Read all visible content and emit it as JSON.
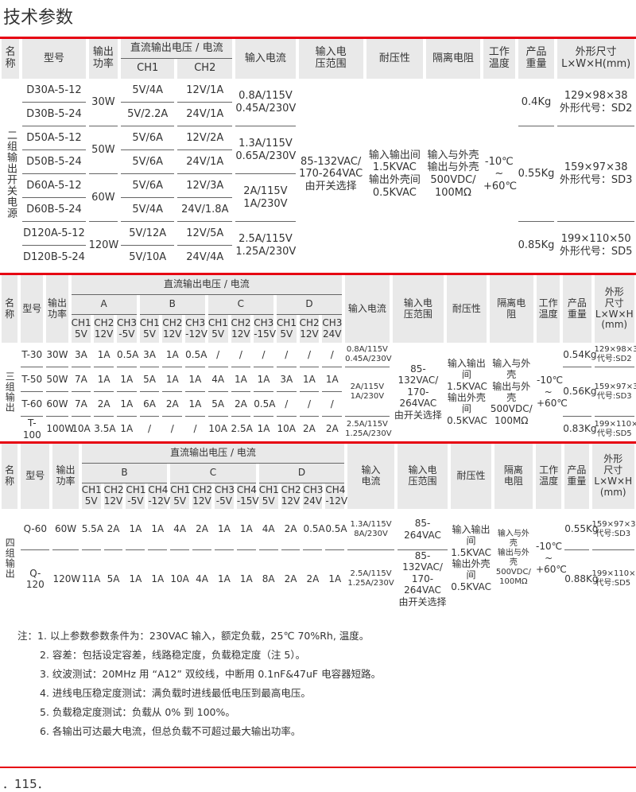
{
  "title": "技术参数",
  "t1": {
    "headers": {
      "name": "名\n称",
      "model": "型号",
      "power": "输出\n功率",
      "dc": "直流输出电压 / 电流",
      "ch": [
        "CH1",
        "CH2"
      ],
      "input_current": "输入电流",
      "input_range": "输入电\n压范围",
      "withstand": "耐压性",
      "isolation": "隔离电阻",
      "temp": "工作\n温度",
      "weight": "产品\n重量",
      "size": "外形尺寸\nL×W×H(mm)"
    },
    "group_label": "二组输出开关电源",
    "rows": [
      {
        "model": "D30A-5-12",
        "ch1": "5V/4A",
        "ch2": "12V/1A"
      },
      {
        "model": "D30B-5-24",
        "ch1": "5V/2.2A",
        "ch2": "24V/1A"
      },
      {
        "model": "D50A-5-12",
        "ch1": "5V/6A",
        "ch2": "12V/2A"
      },
      {
        "model": "D50B-5-24",
        "ch1": "5V/6A",
        "ch2": "24V/1A"
      },
      {
        "model": "D60A-5-12",
        "ch1": "5V/6A",
        "ch2": "12V/3A"
      },
      {
        "model": "D60B-5-24",
        "ch1": "5V/4A",
        "ch2": "24V/1.8A"
      },
      {
        "model": "D120A-5-12",
        "ch1": "5V/12A",
        "ch2": "12V/5A"
      },
      {
        "model": "D120B-5-24",
        "ch1": "5V/10A",
        "ch2": "24V/4A"
      }
    ],
    "powers": [
      "30W",
      "50W",
      "60W",
      "120W"
    ],
    "input_currents": [
      "0.8A/115V\n0.45A/230V",
      "1.3A/115V\n0.65A/230V",
      "2A/115V\n1A/230V",
      "2.5A/115V\n1.25A/230V"
    ],
    "input_range": "85-132VAC/\n170-264VAC\n由开关选择",
    "withstand": "输入输出间\n1.5KVAC\n输出外壳间\n0.5KVAC",
    "isolation": "输入与外壳\n输出与外壳\n500VDC/\n100MΩ",
    "temp": "-10℃\n~\n+60℃",
    "weights": [
      "0.4Kg",
      "0.55Kg",
      "0.85Kg"
    ],
    "sizes": [
      "129×98×38\n外形代号：SD2",
      "159×97×38\n外形代号：SD3",
      "199×110×50\n外形代号：SD5"
    ]
  },
  "t2": {
    "headers": {
      "name": "名\n称",
      "model": "型号",
      "power": "输出\n功率",
      "dc": "直流输出电压 / 电流",
      "groups": [
        "A",
        "B",
        "C",
        "D"
      ],
      "ch": [
        "CH1\n5V",
        "CH2\n12V",
        "CH3\n-5V",
        "CH1\n5V",
        "CH2\n12V",
        "CH3\n-12V",
        "CH1\n5V",
        "CH2\n12V",
        "CH3\n-15V",
        "CH1\n5V",
        "CH2\n12V",
        "CH3\n24V"
      ],
      "input_current": "输入电流",
      "input_range": "输入电\n压范围",
      "withstand": "耐压性",
      "isolation": "隔离电\n阻",
      "temp": "工作\n温度",
      "weight": "产品\n重量",
      "size": "外形\n尺寸\nL×W×H\n(mm)"
    },
    "group_label": "三组输出",
    "rows": [
      {
        "model": "T-30",
        "power": "30W",
        "values": [
          "3A",
          "1A",
          "0.5A",
          "3A",
          "1A",
          "0.5A",
          "/",
          "/",
          "/",
          "/",
          "/",
          "/"
        ]
      },
      {
        "model": "T-50",
        "power": "50W",
        "values": [
          "7A",
          "1A",
          "1A",
          "5A",
          "1A",
          "1A",
          "4A",
          "1A",
          "1A",
          "3A",
          "1A",
          "1A"
        ]
      },
      {
        "model": "T-60",
        "power": "60W",
        "values": [
          "7A",
          "2A",
          "1A",
          "6A",
          "2A",
          "1A",
          "5A",
          "2A",
          "0.5A",
          "/",
          "/",
          "/"
        ]
      },
      {
        "model": "T-100",
        "power": "100W",
        "values": [
          "10A",
          "3.5A",
          "1A",
          "/",
          "/",
          "/",
          "10A",
          "2.5A",
          "1A",
          "10A",
          "2A",
          "2A"
        ]
      }
    ],
    "input_currents": [
      "0.8A/115V\n0.45A/230V",
      "2A/115V\n1A/230V",
      "2.5A/115V\n1.25A/230V"
    ],
    "input_range": "85-132VAC/\n170-264VAC\n由开关选择",
    "withstand": "输入输出间\n1.5KVAC\n输出外壳间\n0.5KVAC",
    "isolation": "输入与外壳\n输出与外壳\n500VDC/\n100MΩ",
    "temp": "-10℃\n~\n+60℃",
    "weights": [
      "0.54Kg",
      "0.56Kg",
      "0.83Kg"
    ],
    "sizes": [
      "129×98×38\n代号:SD2",
      "159×97×38\n代号:SD3",
      "199×110×5\n代号:SD5"
    ]
  },
  "t3": {
    "headers": {
      "name": "名\n称",
      "model": "型号",
      "power": "输出\n功率",
      "dc": "直流输出电压 / 电流",
      "groups": [
        "B",
        "C",
        "D"
      ],
      "ch": [
        "CH1\n5V",
        "CH2\n12V",
        "CH1\n-5V",
        "CH4\n-12V",
        "CH1\n5V",
        "CH2\n12V",
        "CH3\n-5V",
        "CH4\n-15V",
        "CH1\n5V",
        "CH2\n12V",
        "CH3\n24V",
        "CH4\n-12V"
      ],
      "input_current": "输入\n电流",
      "input_range": "输入电\n压范围",
      "withstand": "耐压性",
      "isolation": "隔离\n电阻",
      "temp": "工作\n温度",
      "weight": "产品\n重量",
      "size": "外形\n尺寸\nL×W×H\n(mm)"
    },
    "group_label": "四组输出",
    "rows": [
      {
        "model": "Q-60",
        "power": "60W",
        "values": [
          "5.5A",
          "2A",
          "1A",
          "1A",
          "4A",
          "2A",
          "1A",
          "1A",
          "4A",
          "2A",
          "0.5A",
          "0.5A"
        ],
        "input_current": "1.3A/115V\n8A/230V",
        "input_range": "85-264VAC",
        "weight": "0.55Kg",
        "size": "159×97×38\n代号:SD3"
      },
      {
        "model": "Q-120",
        "power": "120W",
        "values": [
          "11A",
          "5A",
          "1A",
          "1A",
          "10A",
          "4A",
          "1A",
          "1A",
          "8A",
          "2A",
          "2A",
          "1A"
        ],
        "input_current": "2.5A/115V\n1.25A/230V",
        "input_range": "85-132VAC/\n170-264VAC\n由开关选择",
        "weight": "0.88Kg",
        "size": "199×110×50\n代号:SD5"
      }
    ],
    "withstand": "输入输出间\n1.5KVAC\n输出外壳间\n0.5KVAC",
    "isolation": "输入与外壳\n输出与外壳\n500VDC/\n100MΩ",
    "temp": "-10℃\n~\n+60℃"
  },
  "notes": [
    "注：1. 以上参数参数条件为：230VAC 输入，额定负载，25℃ 70%Rh, 温度。",
    "2. 容差：包括设定容差，线路稳定度，负载稳定度（注 5）。",
    "3. 纹波测试：20MHz 用 “A12” 双绞线，中断用 0.1nF&47uF 电容器短路。",
    "4. 进线电压稳定度测试：满负载时进线最低电压到最高电压。",
    "5. 负载稳定度测试：负载从 0% 到 100%。",
    "6. 各输出可达最大电流，但总负载不可超过最大输出功率。"
  ],
  "page_number": "．115．",
  "colors": {
    "accent": "#e60012",
    "header_bg": "#e9e9e9",
    "text": "#333333"
  }
}
